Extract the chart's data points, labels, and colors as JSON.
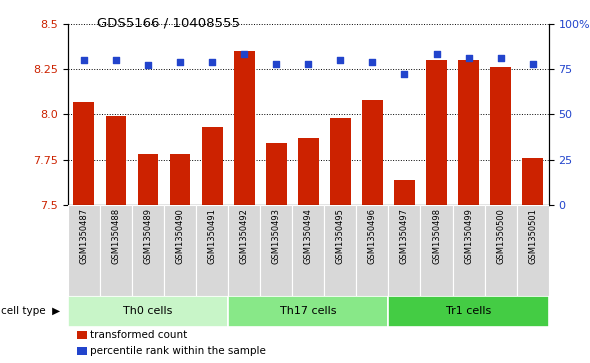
{
  "title": "GDS5166 / 10408555",
  "samples": [
    "GSM1350487",
    "GSM1350488",
    "GSM1350489",
    "GSM1350490",
    "GSM1350491",
    "GSM1350492",
    "GSM1350493",
    "GSM1350494",
    "GSM1350495",
    "GSM1350496",
    "GSM1350497",
    "GSM1350498",
    "GSM1350499",
    "GSM1350500",
    "GSM1350501"
  ],
  "transformed_count": [
    8.07,
    7.99,
    7.78,
    7.78,
    7.93,
    8.35,
    7.84,
    7.87,
    7.98,
    8.08,
    7.64,
    8.3,
    8.3,
    8.26,
    7.76
  ],
  "percentile_rank": [
    80,
    80,
    77,
    79,
    79,
    83,
    78,
    78,
    80,
    79,
    72,
    83,
    81,
    81,
    78
  ],
  "cell_types": [
    {
      "label": "Th0 cells",
      "start": 0,
      "end": 5,
      "color": "#c8f5c8"
    },
    {
      "label": "Th17 cells",
      "start": 5,
      "end": 10,
      "color": "#88e888"
    },
    {
      "label": "Tr1 cells",
      "start": 10,
      "end": 15,
      "color": "#44cc44"
    }
  ],
  "ylim_left": [
    7.5,
    8.5
  ],
  "ylim_right": [
    0,
    100
  ],
  "yticks_left": [
    7.5,
    7.75,
    8.0,
    8.25,
    8.5
  ],
  "yticks_right": [
    0,
    25,
    50,
    75,
    100
  ],
  "ytick_labels_right": [
    "0",
    "25",
    "50",
    "75",
    "100%"
  ],
  "bar_color": "#cc2200",
  "dot_color": "#2244cc",
  "grid_color": "black",
  "xtick_bg": "#d8d8d8",
  "legend_items": [
    {
      "color": "#cc2200",
      "label": "transformed count"
    },
    {
      "color": "#2244cc",
      "label": "percentile rank within the sample"
    }
  ]
}
